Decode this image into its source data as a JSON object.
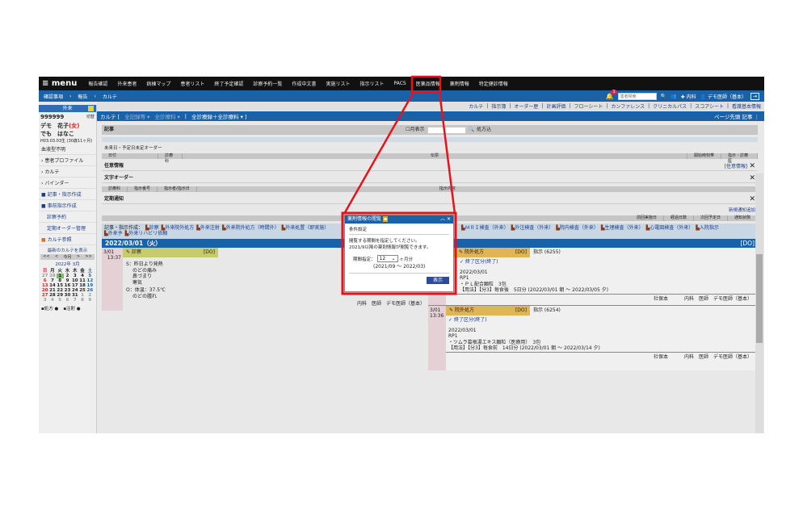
{
  "topnav": {
    "menu": "menu",
    "items": [
      "報告確認",
      "外来患者",
      "病棟マップ",
      "患者リスト",
      "終了予定確認",
      "診察予約一覧",
      "作成中文書",
      "実施リスト",
      "指示リスト",
      "PACS",
      "医薬品情報",
      "薬剤情報",
      "特定健診情報"
    ],
    "highlighted": "薬剤情報"
  },
  "breadcrumb": [
    "確認事項",
    "報告",
    "カルテ"
  ],
  "header": {
    "notification_count": "1",
    "search_placeholder": "患者検索",
    "department": "内科",
    "user": "デモ医師（基本）"
  },
  "links": [
    "カルテ",
    "指示簿",
    "オーダー歴",
    "計画評価",
    "フローシート",
    "カンファレンス",
    "クリニカルパス",
    "スコアシート",
    "看護基本情報"
  ],
  "sidebar": {
    "title": "外来",
    "patient_id": "999999",
    "switch": "切替",
    "name": "デモ　花子",
    "sex": "(女)",
    "kana": "でも　はなこ",
    "dob": "H03.03.03生 (30歳11ヶ月)",
    "blood": "血液型不明",
    "items": [
      "患者プロファイル",
      "カルテ",
      "バインダー"
    ],
    "actions": [
      "記事・指示作成",
      "事前指示作成",
      "診察予約",
      "定期オーダー管理",
      "カルテ参照"
    ],
    "calendar_title": "最新のカルテを表示",
    "cal_nav": [
      "<<",
      "<",
      "今月",
      ">",
      ">>"
    ],
    "month": "2022年 3月",
    "weekdays": [
      "日",
      "月",
      "火",
      "水",
      "木",
      "金",
      "土"
    ],
    "weeks": [
      [
        "27",
        "28",
        "1",
        "2",
        "3",
        "4",
        "5"
      ],
      [
        "6",
        "7",
        "8",
        "9",
        "10",
        "11",
        "12"
      ],
      [
        "13",
        "14",
        "15",
        "16",
        "17",
        "18",
        "19"
      ],
      [
        "20",
        "21",
        "22",
        "23",
        "24",
        "25",
        "26"
      ],
      [
        "27",
        "28",
        "29",
        "30",
        "31",
        "1",
        "2"
      ],
      [
        "3",
        "4",
        "5",
        "6",
        "7",
        "8",
        "9"
      ]
    ],
    "legend": [
      "処方",
      "注射"
    ]
  },
  "karte_bar": {
    "title": "カルテ [",
    "filters": [
      "全記録等",
      "全診療科",
      "全診療録＋全診療料"
    ],
    "right": [
      "ページ先頭",
      "記事"
    ]
  },
  "main": {
    "kiji": "記事",
    "month_display": "月表示",
    "prescription": "処方込",
    "future_orders": "未来日・予定日未定オーダー",
    "future_cols": [
      "日付",
      "診療科",
      "伝票",
      "開始時刻帯",
      "指示・診療医"
    ],
    "print": "印刷",
    "nini": "任意情報",
    "nini_link": "[任意情報]",
    "text_order": "文字オーダー",
    "text_cols": [
      "診療科",
      "指示番号",
      "指示者/指示日",
      "指示内容"
    ],
    "teiki": "定期通知",
    "new_notice": "新規通知追加",
    "teiki_cols": [
      "前回実施日",
      "経過日数",
      "次回予定日",
      "通知状態"
    ],
    "create_label": "記事・指示作成：",
    "create_items": [
      "診察",
      "外来院外処方",
      "外来注射",
      "外来院外処方（時間外）",
      "外来処置（即実施）",
      "外来予",
      "ＭＲＩ検査（外来）",
      "外注検査（外来）",
      "院内検査（外来）",
      "生理検査（外来）",
      "心電図検査（外来）",
      "入院指示",
      "外来リハビリ依頼"
    ],
    "date": "2022/03/01（火）",
    "do": "[DO]"
  },
  "entry1": {
    "date": "3/01",
    "time": "13:37",
    "type": "診察",
    "do": "[DO]",
    "lines_s": [
      "S：昨日より発熱",
      "のどの痛み",
      "鼻づまり",
      "寒気"
    ],
    "lines_o": [
      "O：体温：37.5℃",
      "のどの腫れ"
    ],
    "footer": "内科　医師　デモ医師（基本）"
  },
  "entry2": {
    "type": "院外処方",
    "do": "[DO]",
    "order": "指示 (6255)",
    "status": "終了区分(終了)",
    "date": "2022/03/01",
    "rp": "RP1",
    "drug": "・ＰＬ配合顆粒　3包",
    "usage": "【用法】【分3】毎食後　5日分 (2022/03/01 朝 ～ 2022/03/05 夕)",
    "place": "社保本",
    "footer": "内科　医師　デモ医師（基本）"
  },
  "entry3": {
    "date": "3/01",
    "time": "13:36",
    "type": "院外処方",
    "do": "[DO]",
    "order": "指示 (6254)",
    "status": "終了区分(終了)",
    "rx_date": "2022/03/01",
    "rp": "RP1",
    "drug": "・ツムラ葛根湯エキス顆粒（医療用）　3包",
    "usage": "【用法】【分3】毎食前　14日分 (2022/03/01 朝 ～ 2022/03/14 夕)",
    "place": "社保本",
    "footer": "内科　医師　デモ医師（基本）"
  },
  "dialog": {
    "title": "薬剤情報の閲覧",
    "section": "条件設定",
    "msg1": "閲覧する期間を指定してください。",
    "msg2": "2021/9以降の薬剤情報が閲覧できます。",
    "period_label": "期間指定：",
    "period_value": "12",
    "unit": "ヶ月分",
    "range": "(2021/09 ～ 2022/03)",
    "button": "表示"
  },
  "colors": {
    "nav": "#111111",
    "blue": "#1a62a8",
    "highlight": "#e8121a",
    "exam": "#c8cc66",
    "rx": "#e0b652"
  }
}
